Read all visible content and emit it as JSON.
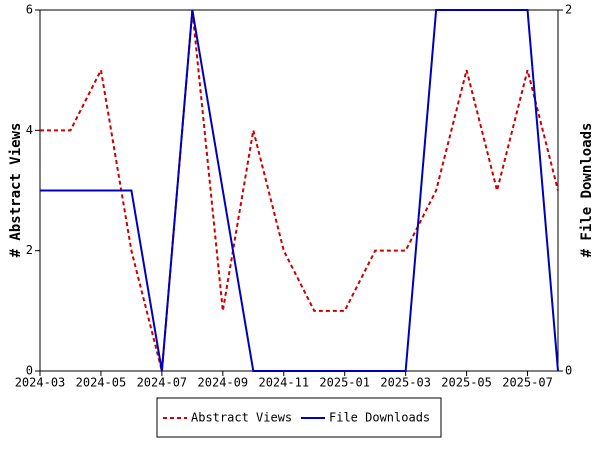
{
  "chart_data": {
    "type": "line",
    "x": [
      "2024-03",
      null,
      "2024-05",
      null,
      "2024-07",
      null,
      "2024-09",
      null,
      "2024-11",
      null,
      "2025-01",
      null,
      "2025-03",
      null,
      "2025-05",
      null,
      "2025-07",
      null
    ],
    "y_label": "# Abstract Views",
    "y2_label": "# File Downloads",
    "ylim": [
      0,
      6
    ],
    "yticks": [
      0,
      2,
      4,
      6
    ],
    "y2lim": [
      0,
      2
    ],
    "y2ticks": [
      0,
      2
    ],
    "legend": "bottom",
    "series": [
      {
        "name": "Abstract Views",
        "color": "#cc0000",
        "dashed": true,
        "values": [
          4,
          4,
          5,
          2,
          0,
          6,
          1,
          4,
          2,
          1,
          1,
          2,
          2,
          3,
          5,
          3,
          5,
          3
        ]
      },
      {
        "name": "File Downloads",
        "color": "#0000bb",
        "dashed": false,
        "axis": "y2",
        "values": [
          1,
          1,
          1,
          1,
          0,
          2,
          1,
          0,
          0,
          0,
          0,
          0,
          0,
          2,
          2,
          2,
          2,
          0
        ]
      }
    ]
  }
}
